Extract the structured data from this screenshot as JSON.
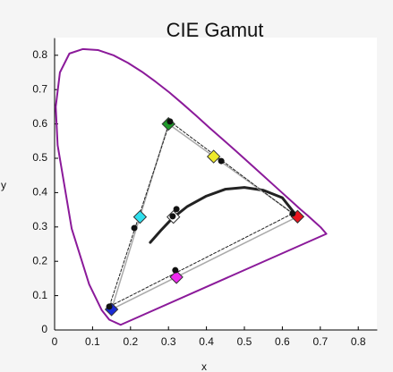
{
  "chart_data": {
    "type": "scatter",
    "title": "CIE Gamut",
    "x_label": "x",
    "y_label": "y",
    "xlim": [
      0,
      0.85
    ],
    "ylim": [
      0,
      0.85
    ],
    "xticks": [
      0,
      0.1,
      0.2,
      0.3,
      0.4,
      0.5,
      0.6,
      0.7,
      0.8
    ],
    "yticks": [
      0,
      0.1,
      0.2,
      0.3,
      0.4,
      0.5,
      0.6,
      0.7,
      0.8
    ],
    "series": [
      {
        "mode": "line",
        "color": "#8b1a9a",
        "width": 2,
        "x": [
          0.174,
          0.144,
          0.124,
          0.091,
          0.045,
          0.008,
          0.003,
          0.014,
          0.039,
          0.074,
          0.115,
          0.155,
          0.193,
          0.23,
          0.266,
          0.302,
          0.337,
          0.373,
          0.408,
          0.444,
          0.479,
          0.512,
          0.544,
          0.575,
          0.603,
          0.627,
          0.648,
          0.666,
          0.68,
          0.692,
          0.701,
          0.716,
          0.174
        ],
        "values": [
          0.015,
          0.03,
          0.058,
          0.133,
          0.295,
          0.538,
          0.65,
          0.75,
          0.805,
          0.818,
          0.815,
          0.8,
          0.778,
          0.752,
          0.723,
          0.692,
          0.659,
          0.624,
          0.589,
          0.554,
          0.52,
          0.487,
          0.455,
          0.424,
          0.396,
          0.372,
          0.351,
          0.334,
          0.32,
          0.308,
          0.299,
          0.28,
          0.015
        ]
      },
      {
        "mode": "line",
        "color": "#222222",
        "width": 3,
        "x": [
          0.252,
          0.28,
          0.31,
          0.35,
          0.4,
          0.45,
          0.5,
          0.55,
          0.6,
          0.63
        ],
        "values": [
          0.255,
          0.29,
          0.325,
          0.36,
          0.39,
          0.41,
          0.415,
          0.407,
          0.385,
          0.343
        ]
      },
      {
        "mode": "line",
        "color": "#aaaaaa",
        "width": 1.5,
        "x": [
          0.64,
          0.3,
          0.15,
          0.64
        ],
        "values": [
          0.33,
          0.6,
          0.06,
          0.33
        ]
      },
      {
        "mode": "line",
        "color": "#222222",
        "width": 1,
        "dash": true,
        "x": [
          0.627,
          0.304,
          0.144,
          0.627
        ],
        "values": [
          0.339,
          0.607,
          0.068,
          0.339
        ]
      },
      {
        "mode": "markers",
        "marker": "diamond",
        "x": [
          0.64,
          0.3,
          0.15,
          0.225,
          0.321,
          0.419,
          0.313
        ],
        "values": [
          0.33,
          0.6,
          0.06,
          0.329,
          0.154,
          0.505,
          0.329
        ],
        "colors": [
          "#e8141e",
          "#1f9a2a",
          "#1a2bd6",
          "#2fe0ee",
          "#ee2aee",
          "#eeea2a",
          "#ffffff"
        ]
      },
      {
        "mode": "markers",
        "marker": "circle",
        "color": "#111111",
        "x": [
          0.627,
          0.304,
          0.144,
          0.21,
          0.318,
          0.439,
          0.311,
          0.321
        ],
        "values": [
          0.339,
          0.607,
          0.068,
          0.297,
          0.174,
          0.492,
          0.331,
          0.352
        ]
      }
    ]
  }
}
